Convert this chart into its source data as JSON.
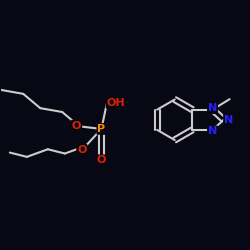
{
  "background_color": "#080814",
  "bond_color": "#cccccc",
  "bond_lw": 1.5,
  "atom_colors": {
    "N": "#2222ff",
    "O": "#dd2200",
    "P": "#ff8800"
  },
  "fontsize": 8.0,
  "figsize": [
    2.5,
    2.5
  ],
  "dpi": 100,
  "xlim": [
    -0.95,
    0.95
  ],
  "ylim": [
    -0.85,
    0.85
  ]
}
